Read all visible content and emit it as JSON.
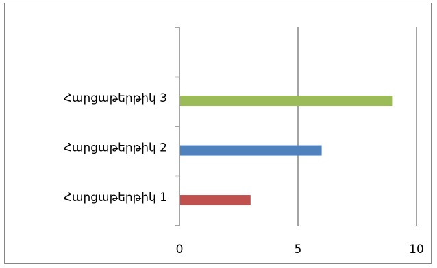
{
  "chart_data": {
    "type": "bar",
    "orientation": "horizontal",
    "title": "",
    "xlabel": "",
    "ylabel": "",
    "categories": [
      "Հարցաթերթիկ 1",
      "Հարցաթերթիկ 2",
      "Հարցաթերթիկ 3"
    ],
    "series": [
      {
        "values": [
          3,
          6,
          9
        ]
      }
    ],
    "bar_colors": [
      "#c0504d",
      "#4f81bd",
      "#9bbb59"
    ],
    "xlim": [
      0,
      10
    ],
    "x_ticks": [
      0,
      5,
      10
    ],
    "x_tick_labels": [
      "0",
      "5",
      "10"
    ],
    "gridlines": "vertical-major",
    "legend": "none"
  }
}
